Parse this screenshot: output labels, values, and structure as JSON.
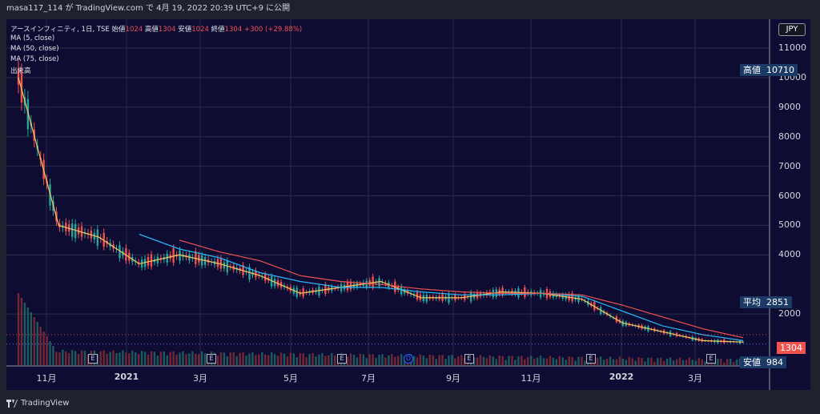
{
  "topbar": {
    "text": "masa117_114 が TradingView.com で 4月 19, 2022 20:39 UTC+9 に公開"
  },
  "legend": {
    "title": "アースインフィニティ, 1日, TSE",
    "open_label": "始値",
    "open": "1024",
    "high_label": "高値",
    "high": "1304",
    "low_label": "安値",
    "low": "1024",
    "close_label": "終値",
    "close": "1304",
    "change": "+300 (+29.88%)",
    "ma1": "MA (5, close)",
    "ma2": "MA (50, close)",
    "ma3": "MA (75, close)",
    "volume": "出来高"
  },
  "currency": "JPY",
  "y_ticks": [
    "11000",
    "10000",
    "9000",
    "8000",
    "7000",
    "6000",
    "5000",
    "4000",
    "2000"
  ],
  "x_ticks": [
    "11月",
    "2021",
    "3月",
    "5月",
    "7月",
    "9月",
    "11月",
    "2022",
    "3月"
  ],
  "price_labels": {
    "high_label": "高値",
    "high_value": "10710",
    "avg_label": "平均",
    "avg_value": "2851",
    "last_value": "1304",
    "low_label": "安値",
    "low_value": "984"
  },
  "events": [
    "E",
    "E",
    "E",
    "D",
    "E",
    "E",
    "E"
  ],
  "bottombar": {
    "brand": "TradingView"
  },
  "colors": {
    "bg": "#0f0c33",
    "up": "#26a69a",
    "down": "#ef5350",
    "ma5": "#f6c85f",
    "ma50": "#29b6f6",
    "ma75": "#ef5350"
  },
  "chart_data": {
    "type": "line",
    "title": "アースインフィニティ, 1日, TSE",
    "xlabel": "",
    "ylabel": "",
    "x": [
      "2020-10",
      "2020-11",
      "2020-12",
      "2021-01",
      "2021-02",
      "2021-03",
      "2021-04",
      "2021-05",
      "2021-06",
      "2021-07",
      "2021-08",
      "2021-09",
      "2021-10",
      "2021-11",
      "2021-12",
      "2022-01",
      "2022-02",
      "2022-03",
      "2022-04"
    ],
    "series": [
      {
        "name": "MA (5, close)",
        "values": [
          10000,
          5000,
          4600,
          3700,
          4000,
          3700,
          3300,
          2700,
          2900,
          3100,
          2550,
          2550,
          2750,
          2700,
          2500,
          1700,
          1400,
          1100,
          1050
        ]
      },
      {
        "name": "MA (50, close)",
        "values": [
          null,
          null,
          null,
          4700,
          4200,
          3900,
          3400,
          3100,
          2900,
          2900,
          2750,
          2650,
          2650,
          2700,
          2600,
          2100,
          1600,
          1300,
          1100
        ]
      },
      {
        "name": "MA (75, close)",
        "values": [
          null,
          null,
          null,
          null,
          4500,
          4100,
          3800,
          3300,
          3100,
          3000,
          2850,
          2750,
          2700,
          2700,
          2650,
          2300,
          1900,
          1500,
          1200
        ]
      }
    ],
    "ylim": [
      900,
      11500
    ],
    "high": 10710,
    "average": 2851,
    "low": 984,
    "last": 1304
  }
}
